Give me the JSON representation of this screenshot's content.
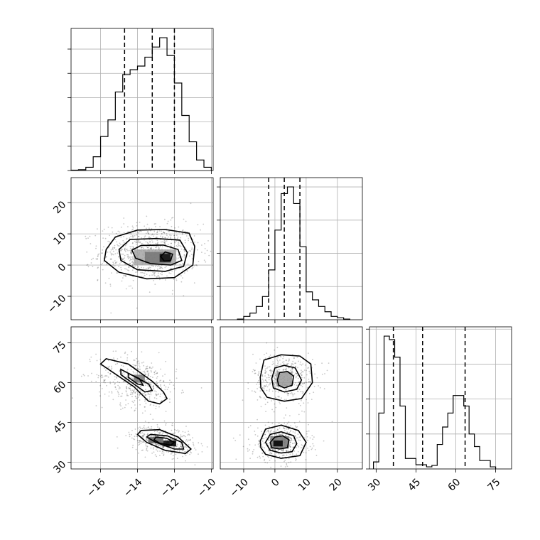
{
  "chart_data": {
    "type": "corner",
    "grid": true,
    "parameters": [
      {
        "range": [
          -17.6,
          -9.9
        ],
        "ticks": [
          -16,
          -14,
          -12,
          -10
        ],
        "tick_labels": [
          "−16",
          "−14",
          "−12",
          "−10"
        ],
        "quantiles": [
          -14.7,
          -13.2,
          -12.0
        ],
        "histogram": {
          "bins": [
            -17.6,
            -17.2,
            -16.8,
            -16.4,
            -16.0,
            -15.6,
            -15.2,
            -14.8,
            -14.4,
            -14.0,
            -13.6,
            -13.2,
            -12.8,
            -12.4,
            -12.0,
            -11.6,
            -11.2,
            -10.8,
            -10.4,
            -10.0
          ],
          "counts": [
            1,
            2,
            8,
            34,
            84,
            125,
            194,
            237,
            249,
            258,
            280,
            305,
            328,
            284,
            216,
            136,
            71,
            26,
            8
          ]
        },
        "hist_yticks": [
          0,
          60,
          120,
          180,
          240,
          300
        ]
      },
      {
        "range": [
          -17.5,
          28
        ],
        "ticks": [
          -10,
          0,
          10,
          20
        ],
        "tick_labels": [
          "−10",
          "0",
          "10",
          "20"
        ],
        "quantiles": [
          -2.0,
          3.0,
          8.0
        ],
        "histogram": {
          "bins": [
            -12,
            -10,
            -8,
            -6,
            -4,
            -2,
            0,
            2,
            4,
            6,
            8,
            10,
            12,
            14,
            16,
            18,
            20,
            22,
            24
          ],
          "counts": [
            1,
            5,
            10,
            20,
            35,
            75,
            135,
            190,
            200,
            175,
            110,
            42,
            30,
            20,
            12,
            5,
            3,
            1
          ]
        },
        "hist_yticks": [
          0,
          50,
          100,
          150,
          200
        ]
      },
      {
        "range": [
          27.5,
          81
        ],
        "ticks": [
          30,
          45,
          60,
          75
        ],
        "tick_labels": [
          "30",
          "45",
          "60",
          "75"
        ],
        "quantiles": [
          36.5,
          47.5,
          63.5
        ],
        "histogram": {
          "bins": [
            29,
            31,
            33,
            35,
            37,
            39,
            41,
            43,
            45,
            47,
            49,
            51,
            53,
            55,
            57,
            59,
            61,
            63,
            65,
            67,
            69,
            71,
            73,
            75
          ],
          "counts": [
            10,
            80,
            190,
            185,
            160,
            90,
            15,
            15,
            6,
            6,
            3,
            5,
            35,
            60,
            80,
            105,
            105,
            90,
            50,
            32,
            12,
            12,
            3
          ]
        },
        "hist_yticks": [
          0,
          50,
          100,
          150,
          200
        ]
      }
    ],
    "pairs": [
      {
        "x": 0,
        "y": 1,
        "scatter": {
          "center": [
            -12.9,
            2.5
          ],
          "spread": [
            1.3,
            4.3
          ],
          "rho": 0.05,
          "n": 900
        },
        "density_blocks": [
          {
            "x0": -14.2,
            "x1": -11.9,
            "y0": 0.0,
            "y1": 5.0,
            "level": 0.3
          },
          {
            "x0": -13.6,
            "x1": -12.2,
            "y0": 0.6,
            "y1": 4.2,
            "level": 0.5
          },
          {
            "x0": -12.8,
            "x1": -12.2,
            "y0": 1.0,
            "y1": 3.6,
            "level": 0.95
          }
        ],
        "contours": [
          [
            [
              -15.7,
              5.0
            ],
            [
              -15.2,
              9.0
            ],
            [
              -14.0,
              11.2
            ],
            [
              -12.5,
              11.4
            ],
            [
              -11.2,
              10.2
            ],
            [
              -10.9,
              6.0
            ],
            [
              -11.0,
              0.0
            ],
            [
              -12.0,
              -4.0
            ],
            [
              -13.5,
              -4.4
            ],
            [
              -15.0,
              -2.3
            ],
            [
              -15.8,
              1.5
            ]
          ],
          [
            [
              -15.0,
              5.0
            ],
            [
              -14.4,
              8.2
            ],
            [
              -13.0,
              8.5
            ],
            [
              -11.7,
              8.0
            ],
            [
              -11.3,
              4.0
            ],
            [
              -11.5,
              -0.4
            ],
            [
              -12.5,
              -2.0
            ],
            [
              -14.0,
              -1.5
            ],
            [
              -14.9,
              1.5
            ]
          ],
          [
            [
              -14.3,
              4.8
            ],
            [
              -13.8,
              6.3
            ],
            [
              -12.6,
              6.4
            ],
            [
              -11.8,
              5.0
            ],
            [
              -11.6,
              1.5
            ],
            [
              -12.2,
              0.0
            ],
            [
              -13.3,
              0.5
            ],
            [
              -14.1,
              2.2
            ]
          ],
          [
            [
              -12.75,
              2.8
            ],
            [
              -12.5,
              4.2
            ],
            [
              -12.1,
              3.5
            ],
            [
              -12.2,
              1.5
            ],
            [
              -12.55,
              1.3
            ]
          ]
        ]
      },
      {
        "x": 0,
        "y": 2,
        "scatter": {
          "center": [
            -12.5,
            45.0
          ],
          "spread": [
            1.3,
            12.0
          ],
          "rho": -0.95,
          "n": 900
        },
        "density_blocks": [
          {
            "x0": -12.6,
            "x1": -11.9,
            "y0": 36.0,
            "y1": 38.2,
            "level": 1.0
          },
          {
            "x0": -13.4,
            "x1": -12.6,
            "y0": 37.2,
            "y1": 39.5,
            "level": 0.6
          },
          {
            "x0": -14.2,
            "x1": -13.6,
            "y0": 60.0,
            "y1": 63.0,
            "level": 0.5
          }
        ],
        "contours": [
          [
            [
              -15.7,
              69.0
            ],
            [
              -14.5,
              67.0
            ],
            [
              -13.2,
              60.5
            ],
            [
              -12.6,
              56.5
            ],
            [
              -12.4,
              54.0
            ],
            [
              -12.8,
              52.0
            ],
            [
              -13.4,
              53.0
            ],
            [
              -14.2,
              58.5
            ],
            [
              -15.4,
              64.2
            ],
            [
              -16.0,
              67.0
            ]
          ],
          [
            [
              -14.9,
              65.0
            ],
            [
              -13.4,
              59.5
            ],
            [
              -13.2,
              57.0
            ],
            [
              -13.6,
              56.5
            ],
            [
              -14.3,
              60.0
            ],
            [
              -14.9,
              63.0
            ]
          ],
          [
            [
              -14.5,
              63.5
            ],
            [
              -13.9,
              61.5
            ],
            [
              -13.7,
              59.0
            ],
            [
              -14.0,
              59.5
            ],
            [
              -14.5,
              62.0
            ]
          ],
          [
            [
              -13.8,
              42.0
            ],
            [
              -12.8,
              42.3
            ],
            [
              -11.8,
              39.5
            ],
            [
              -11.1,
              35.0
            ],
            [
              -11.4,
              33.3
            ],
            [
              -12.5,
              34.5
            ],
            [
              -13.5,
              37.5
            ],
            [
              -14.0,
              40.5
            ]
          ],
          [
            [
              -13.3,
              40.5
            ],
            [
              -12.4,
              40.0
            ],
            [
              -11.6,
              37.5
            ],
            [
              -11.5,
              35.0
            ],
            [
              -12.0,
              35.0
            ],
            [
              -13.0,
              37.5
            ],
            [
              -13.5,
              39.5
            ]
          ],
          [
            [
              -13.0,
              39.5
            ],
            [
              -12.4,
              39.0
            ],
            [
              -12.0,
              37.5
            ],
            [
              -12.2,
              36.5
            ],
            [
              -12.8,
              37.2
            ],
            [
              -13.1,
              38.5
            ]
          ]
        ]
      },
      {
        "x": 1,
        "y": 2,
        "scatter": {
          "center": [
            3.0,
            45.0
          ],
          "spread": [
            5.0,
            12.0
          ],
          "rho": 0.0,
          "n": 900
        },
        "density_blocks": [
          {
            "x0": -1.5,
            "x1": 4.5,
            "y0": 35.2,
            "y1": 39.8,
            "level": 0.5
          },
          {
            "x0": -0.5,
            "x1": 2.5,
            "y0": 36.0,
            "y1": 38.2,
            "level": 1.0
          },
          {
            "x0": 0.5,
            "x1": 5.5,
            "y0": 58.5,
            "y1": 64.0,
            "level": 0.35
          }
        ],
        "contours": [
          [
            [
              -4.7,
              62.0
            ],
            [
              -3.5,
              68.5
            ],
            [
              2.0,
              70.5
            ],
            [
              8.0,
              70.0
            ],
            [
              11.5,
              67.0
            ],
            [
              12.0,
              60.0
            ],
            [
              8.5,
              54.0
            ],
            [
              3.0,
              53.0
            ],
            [
              -2.5,
              54.5
            ],
            [
              -4.5,
              58.0
            ]
          ],
          [
            [
              -1.0,
              61.5
            ],
            [
              0.0,
              65.5
            ],
            [
              3.0,
              66.5
            ],
            [
              6.5,
              65.5
            ],
            [
              8.5,
              61.0
            ],
            [
              7.0,
              57.5
            ],
            [
              3.0,
              56.5
            ],
            [
              -0.5,
              58.0
            ]
          ],
          [
            [
              0.8,
              61.0
            ],
            [
              1.5,
              63.8
            ],
            [
              4.0,
              64.2
            ],
            [
              6.0,
              62.5
            ],
            [
              5.5,
              59.0
            ],
            [
              3.0,
              58.0
            ],
            [
              1.2,
              59.0
            ]
          ],
          [
            [
              -4.7,
              38.0
            ],
            [
              -3.0,
              42.5
            ],
            [
              2.0,
              44.0
            ],
            [
              7.5,
              42.0
            ],
            [
              10.0,
              37.5
            ],
            [
              8.0,
              32.5
            ],
            [
              2.0,
              31.5
            ],
            [
              -3.0,
              33.0
            ],
            [
              -4.5,
              35.5
            ]
          ],
          [
            [
              -3.0,
              37.5
            ],
            [
              -1.5,
              40.5
            ],
            [
              2.0,
              41.5
            ],
            [
              6.0,
              40.0
            ],
            [
              7.0,
              37.0
            ],
            [
              5.5,
              34.0
            ],
            [
              2.0,
              33.5
            ],
            [
              -1.5,
              34.5
            ]
          ],
          [
            [
              -1.5,
              37.5
            ],
            [
              0.0,
              39.5
            ],
            [
              2.5,
              40.0
            ],
            [
              4.5,
              38.5
            ],
            [
              4.0,
              35.5
            ],
            [
              1.5,
              35.0
            ],
            [
              -1.0,
              35.5
            ]
          ]
        ]
      }
    ]
  }
}
